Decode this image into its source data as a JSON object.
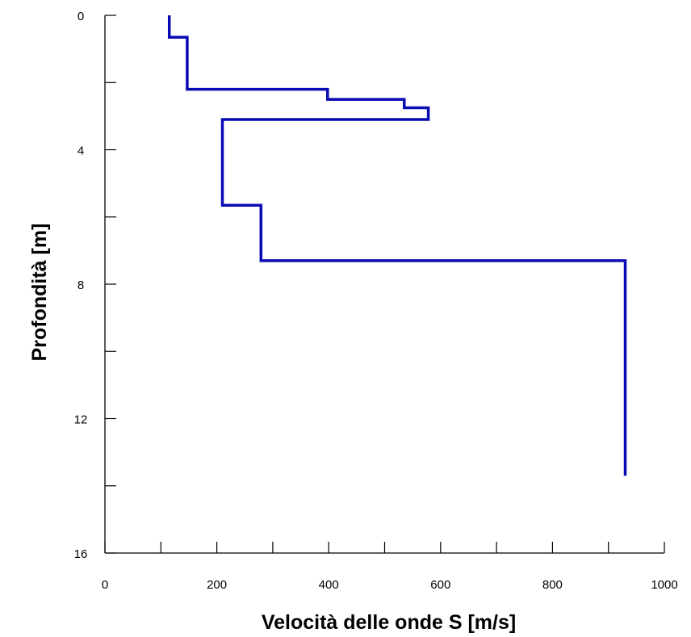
{
  "chart_data": {
    "type": "line",
    "title": "",
    "xlabel": "Velocità delle onde S [m/s]",
    "ylabel": "Profondità [m]",
    "xlim": [
      0,
      1000
    ],
    "ylim": [
      16,
      0
    ],
    "y_inverted": true,
    "grid": false,
    "x_major_ticks": [
      0,
      200,
      400,
      600,
      800,
      1000
    ],
    "x_minor_ticks": [
      100,
      300,
      500,
      700,
      900
    ],
    "y_major_ticks": [
      0,
      4,
      8,
      12,
      16
    ],
    "y_minor_ticks": [
      2,
      6,
      10,
      14
    ],
    "series": [
      {
        "color": "#0a0ab4",
        "points": [
          {
            "x": 115,
            "y": 0.0
          },
          {
            "x": 115,
            "y": 0.65
          },
          {
            "x": 147,
            "y": 0.65
          },
          {
            "x": 147,
            "y": 2.2
          },
          {
            "x": 398,
            "y": 2.2
          },
          {
            "x": 398,
            "y": 2.5
          },
          {
            "x": 535,
            "y": 2.5
          },
          {
            "x": 535,
            "y": 2.75
          },
          {
            "x": 578,
            "y": 2.75
          },
          {
            "x": 578,
            "y": 3.1
          },
          {
            "x": 210,
            "y": 3.1
          },
          {
            "x": 210,
            "y": 5.65
          },
          {
            "x": 279,
            "y": 5.65
          },
          {
            "x": 279,
            "y": 7.3
          },
          {
            "x": 930,
            "y": 7.3
          },
          {
            "x": 930,
            "y": 13.7
          }
        ]
      }
    ]
  }
}
